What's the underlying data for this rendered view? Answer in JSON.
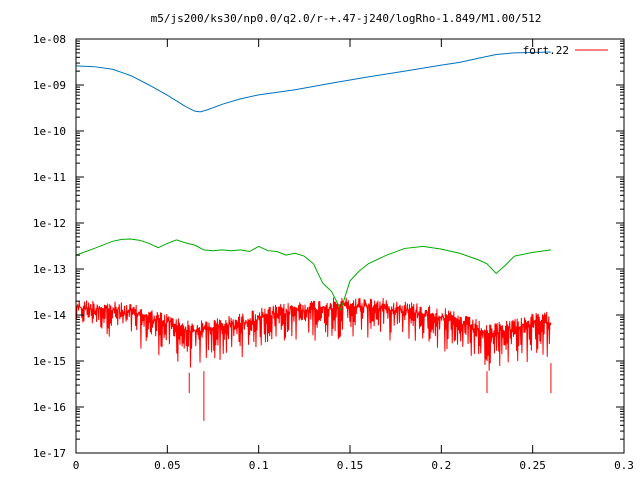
{
  "chart_data": {
    "type": "line",
    "title": "m5/js200/ks30/np0.0/q2.0/r-+.47-j240/logRho-1.849/M1.00/512",
    "xlabel": "",
    "ylabel": "",
    "xlim": [
      0,
      0.3
    ],
    "ylim": [
      1e-17,
      1e-08
    ],
    "yscale": "log",
    "grid": false,
    "legend_position": "top-right",
    "x_ticks": [
      "0",
      "0.05",
      "0.1",
      "0.15",
      "0.2",
      "0.25",
      "0.3"
    ],
    "x_tick_values": [
      0,
      0.05,
      0.1,
      0.15,
      0.2,
      0.25,
      0.3
    ],
    "y_ticks": [
      "1e-08",
      "1e-09",
      "1e-10",
      "1e-11",
      "1e-12",
      "1e-13",
      "1e-14",
      "1e-15",
      "1e-16",
      "1e-17"
    ],
    "y_tick_values": [
      1e-08,
      1e-09,
      1e-10,
      1e-11,
      1e-12,
      1e-13,
      1e-14,
      1e-15,
      1e-16,
      1e-17
    ],
    "legend": [
      {
        "label": "fort.22",
        "color": "#ff0000"
      }
    ],
    "series": [
      {
        "color": "#0072bd",
        "x": [
          0,
          0.01,
          0.02,
          0.03,
          0.04,
          0.05,
          0.055,
          0.06,
          0.065,
          0.068,
          0.072,
          0.08,
          0.09,
          0.1,
          0.12,
          0.14,
          0.16,
          0.18,
          0.2,
          0.21,
          0.22,
          0.23,
          0.24,
          0.25,
          0.26
        ],
        "y": [
          2.6e-09,
          2.5e-09,
          2.2e-09,
          1.6e-09,
          1e-09,
          6e-10,
          4.5e-10,
          3.4e-10,
          2.7e-10,
          2.6e-10,
          2.9e-10,
          3.8e-10,
          5e-10,
          6.1e-10,
          7.9e-10,
          1.1e-09,
          1.5e-09,
          2e-09,
          2.7e-09,
          3.1e-09,
          3.8e-09,
          4.6e-09,
          5e-09,
          5.1e-09,
          5.2e-09
        ]
      },
      {
        "color": "#00aa00",
        "x": [
          0,
          0.01,
          0.02,
          0.025,
          0.03,
          0.035,
          0.04,
          0.045,
          0.05,
          0.055,
          0.06,
          0.065,
          0.07,
          0.075,
          0.08,
          0.085,
          0.09,
          0.095,
          0.1,
          0.105,
          0.11,
          0.115,
          0.12,
          0.125,
          0.13,
          0.135,
          0.14,
          0.145,
          0.15,
          0.155,
          0.16,
          0.17,
          0.18,
          0.19,
          0.2,
          0.21,
          0.22,
          0.225,
          0.23,
          0.235,
          0.24,
          0.25,
          0.26
        ],
        "y": [
          2e-13,
          2.8e-13,
          4e-13,
          4.4e-13,
          4.5e-13,
          4.2e-13,
          3.6e-13,
          2.9e-13,
          3.6e-13,
          4.3e-13,
          3.7e-13,
          3.3e-13,
          2.6e-13,
          2.5e-13,
          2.6e-13,
          2.5e-13,
          2.6e-13,
          2.4e-13,
          3.1e-13,
          2.5e-13,
          2.4e-13,
          2e-13,
          2.2e-13,
          1.9e-13,
          1.3e-13,
          5e-14,
          3.2e-14,
          1.3e-14,
          5.5e-14,
          9e-14,
          1.3e-13,
          2e-13,
          2.8e-13,
          3.1e-13,
          2.7e-13,
          2.2e-13,
          1.6e-13,
          1.3e-13,
          8e-14,
          1.2e-13,
          1.9e-13,
          2.3e-13,
          2.6e-13
        ]
      },
      {
        "name": "fort.22",
        "color": "#ff0000",
        "envelope_x": [
          0,
          0.01,
          0.02,
          0.03,
          0.04,
          0.05,
          0.06,
          0.065,
          0.07,
          0.08,
          0.09,
          0.1,
          0.11,
          0.12,
          0.13,
          0.14,
          0.15,
          0.16,
          0.17,
          0.18,
          0.19,
          0.2,
          0.21,
          0.22,
          0.225,
          0.23,
          0.24,
          0.25,
          0.26
        ],
        "envelope_upper": [
          2.2e-14,
          2.2e-14,
          2e-14,
          1.8e-14,
          1.4e-14,
          1.1e-14,
          8e-15,
          7e-15,
          8e-15,
          9e-15,
          1.1e-14,
          1.4e-14,
          1.7e-14,
          2e-14,
          2.2e-14,
          2.4e-14,
          2.5e-14,
          2.5e-14,
          2.3e-14,
          2.1e-14,
          1.8e-14,
          1.5e-14,
          1.1e-14,
          8e-15,
          6e-15,
          7e-15,
          9e-15,
          1.1e-14,
          1.2e-14
        ],
        "envelope_lower": [
          4e-15,
          4e-15,
          3e-15,
          2e-15,
          1.5e-15,
          1e-15,
          6e-16,
          5e-16,
          6e-16,
          8e-16,
          1.1e-15,
          1.5e-15,
          2e-15,
          2.3e-15,
          2.5e-15,
          2.7e-15,
          2.8e-15,
          2.7e-15,
          2.5e-15,
          2.2e-15,
          1.8e-15,
          1.5e-15,
          1.1e-15,
          8e-16,
          6e-16,
          6e-16,
          7e-16,
          8e-16,
          9e-16
        ],
        "min_points": [
          {
            "x": 0.07,
            "y": 5e-17
          },
          {
            "x": 0.062,
            "y": 2e-16
          },
          {
            "x": 0.225,
            "y": 2e-16
          },
          {
            "x": 0.26,
            "y": 2e-16
          }
        ]
      }
    ]
  }
}
